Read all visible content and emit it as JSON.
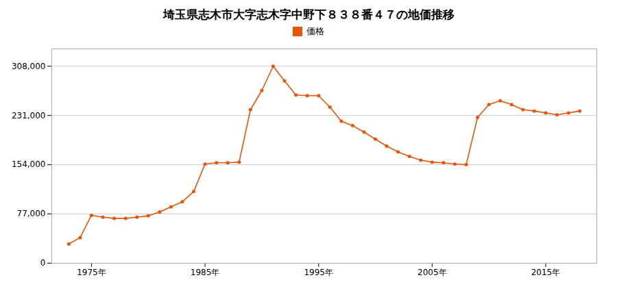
{
  "chart_data": {
    "type": "line",
    "title": "埼玉県志木市大字志木字中野下８３８番４７の地価推移",
    "x": [
      1973,
      1974,
      1975,
      1976,
      1977,
      1978,
      1979,
      1980,
      1981,
      1982,
      1983,
      1984,
      1985,
      1986,
      1987,
      1988,
      1989,
      1990,
      1991,
      1992,
      1993,
      1994,
      1995,
      1996,
      1997,
      1998,
      1999,
      2000,
      2001,
      2002,
      2003,
      2004,
      2005,
      2006,
      2007,
      2008,
      2009,
      2010,
      2011,
      2012,
      2013,
      2014,
      2015,
      2016,
      2017,
      2018
    ],
    "series": [
      {
        "name": "価格",
        "color": "#e8540a",
        "marker": "circle",
        "values": [
          30000,
          40000,
          75000,
          72000,
          70000,
          70000,
          72000,
          74000,
          80000,
          88000,
          96000,
          112000,
          155000,
          157000,
          157000,
          158000,
          240000,
          270000,
          308000,
          285000,
          263000,
          262000,
          262000,
          244000,
          222000,
          215000,
          205000,
          194000,
          183000,
          174000,
          167000,
          161000,
          158000,
          157000,
          155000,
          154000,
          228000,
          248000,
          254000,
          248000,
          240000,
          238000,
          235000,
          232000,
          235000,
          238000
        ]
      }
    ],
    "xlim": [
      1971.5,
      2019.5
    ],
    "xticks": [
      {
        "value": 1975,
        "label": "1975年"
      },
      {
        "value": 1985,
        "label": "1985年"
      },
      {
        "value": 1995,
        "label": "1995年"
      },
      {
        "value": 2005,
        "label": "2005年"
      },
      {
        "value": 2015,
        "label": "2015年"
      }
    ],
    "ylim": [
      0,
      335000
    ],
    "yticks": [
      0,
      {
        "value": 77000,
        "label": "77,000"
      },
      {
        "value": 154000,
        "label": "154,000"
      },
      {
        "value": 231000,
        "label": "231,000"
      },
      {
        "value": 308000,
        "label": "308,000"
      }
    ],
    "grid": true,
    "legend": "top"
  }
}
